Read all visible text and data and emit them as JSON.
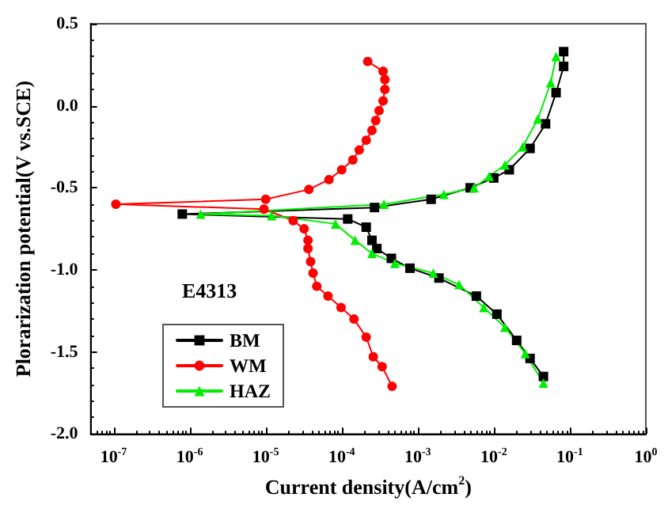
{
  "chart_data": {
    "type": "line",
    "xlabel": "Current density(A/cm$^{2}$)",
    "ylabel": "Plorarization potential(V vs.SCE)",
    "legend_title": "E4313",
    "log": "x",
    "grid": false,
    "legend": "bottom left",
    "line_style": "solid",
    "xlim": [
      5e-08,
      1
    ],
    "xticks": [
      {
        "value": 1e-07,
        "label": "10$^{-7}$"
      },
      {
        "value": 1e-06,
        "label": "10$^{-6}$"
      },
      {
        "value": 1e-05,
        "label": "10$^{-5}$"
      },
      {
        "value": 0.0001,
        "label": "10$^{-4}$"
      },
      {
        "value": 0.001,
        "label": "10$^{-3}$"
      },
      {
        "value": 0.01,
        "label": "10$^{-2}$"
      },
      {
        "value": 0.1,
        "label": "10$^{-1}$"
      },
      {
        "value": 1,
        "label": "10$^{0}$"
      }
    ],
    "ylim": [
      -2,
      0.5
    ],
    "yticks": [
      {
        "value": -2,
        "label": "-2.0"
      },
      {
        "value": -1.5,
        "label": "-1.5"
      },
      {
        "value": -1,
        "label": "-1.0"
      },
      {
        "value": -0.5,
        "label": "-0.5"
      },
      {
        "value": 0,
        "label": "0.0"
      },
      {
        "value": 0.5,
        "label": "0.5"
      }
    ],
    "series": [
      {
        "name": "BM",
        "color": "#000000",
        "marker": "square",
        "x": [
          0.045,
          0.03,
          0.02,
          0.011,
          0.0059,
          0.0019,
          0.00079,
          0.00045,
          0.00029,
          0.00025,
          0.00021,
          0.00012,
          8e-07,
          0.00027,
          0.0015,
          0.0049,
          0.01,
          0.016,
          0.03,
          0.048,
          0.066,
          0.083,
          0.083
        ],
        "values": [
          -1.65,
          -1.54,
          -1.43,
          -1.27,
          -1.16,
          -1.05,
          -0.99,
          -0.93,
          -0.87,
          -0.82,
          -0.74,
          -0.69,
          -0.66,
          -0.62,
          -0.57,
          -0.5,
          -0.44,
          -0.39,
          -0.26,
          -0.11,
          0.08,
          0.24,
          0.33
        ]
      },
      {
        "name": "WM",
        "color": "#ff0000",
        "marker": "circle",
        "x": [
          0.00046,
          0.00034,
          0.00026,
          0.00021,
          0.000145,
          9.8e-05,
          6.6e-05,
          4.7e-05,
          4.2e-05,
          3.9e-05,
          3.6e-05,
          3.6e-05,
          3.2e-05,
          2.3e-05,
          9.5e-06,
          1.07e-07,
          1e-05,
          3.7e-05,
          6.8e-05,
          0.0001,
          0.00014,
          0.00017,
          0.00021,
          0.00025,
          0.00028,
          0.00031,
          0.00035,
          0.00037,
          0.00037,
          0.00035,
          0.00022
        ],
        "values": [
          -1.71,
          -1.59,
          -1.53,
          -1.41,
          -1.3,
          -1.23,
          -1.16,
          -1.1,
          -1.02,
          -0.95,
          -0.87,
          -0.82,
          -0.75,
          -0.7,
          -0.63,
          -0.6,
          -0.57,
          -0.51,
          -0.45,
          -0.39,
          -0.33,
          -0.27,
          -0.21,
          -0.15,
          -0.09,
          -0.03,
          0.03,
          0.1,
          0.16,
          0.21,
          0.27
        ]
      },
      {
        "name": "HAZ",
        "color": "#00ee00",
        "marker": "triangle",
        "x": [
          0.045,
          0.026,
          0.014,
          0.0074,
          0.0035,
          0.0016,
          0.0005,
          0.00025,
          0.00015,
          8.3e-05,
          1.2e-05,
          1.4e-06,
          0.00036,
          0.0022,
          0.0055,
          0.0087,
          0.014,
          0.024,
          0.038,
          0.056,
          0.066
        ],
        "values": [
          -1.69,
          -1.51,
          -1.35,
          -1.23,
          -1.09,
          -1.02,
          -0.96,
          -0.9,
          -0.82,
          -0.72,
          -0.67,
          -0.66,
          -0.6,
          -0.54,
          -0.5,
          -0.43,
          -0.36,
          -0.25,
          -0.08,
          0.14,
          0.3
        ]
      }
    ]
  }
}
